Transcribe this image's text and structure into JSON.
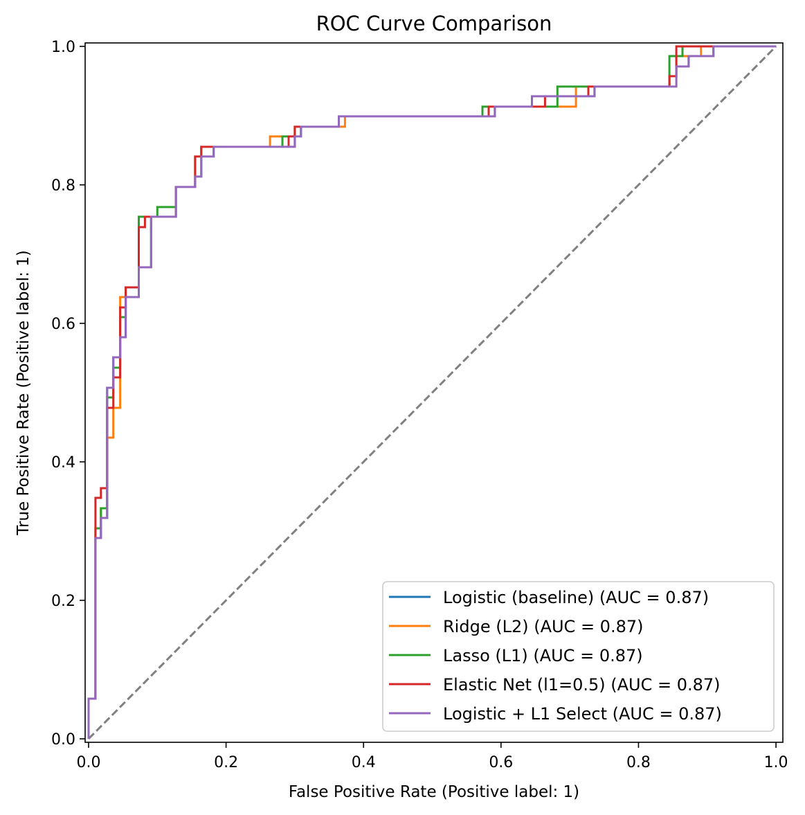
{
  "chart_data": {
    "type": "line",
    "title": "ROC Curve Comparison",
    "xlabel": "False Positive Rate (Positive label: 1)",
    "ylabel": "True Positive Rate (Positive label: 1)",
    "xlim": [
      -0.005,
      1.01
    ],
    "ylim": [
      -0.005,
      1.005
    ],
    "xticks": [
      "0.0",
      "0.2",
      "0.4",
      "0.6",
      "0.8",
      "1.0"
    ],
    "yticks": [
      "0.0",
      "0.2",
      "0.4",
      "0.6",
      "0.8",
      "1.0"
    ],
    "legend_position": "lower-right",
    "grid": false,
    "reference_line": {
      "x": [
        0,
        1
      ],
      "y": [
        0,
        1
      ],
      "color": "#808080",
      "style": "dashed"
    },
    "series": [
      {
        "name": "Logistic (baseline) (AUC = 0.87)",
        "color": "#1f77b4",
        "points": [
          [
            0,
            0
          ],
          [
            0,
            0.058
          ],
          [
            0.01,
            0.058
          ],
          [
            0.01,
            0.29
          ],
          [
            0.018,
            0.29
          ],
          [
            0.018,
            0.319
          ],
          [
            0.027,
            0.319
          ],
          [
            0.027,
            0.507
          ],
          [
            0.036,
            0.507
          ],
          [
            0.036,
            0.551
          ],
          [
            0.046,
            0.551
          ],
          [
            0.046,
            0.58
          ],
          [
            0.054,
            0.58
          ],
          [
            0.054,
            0.638
          ],
          [
            0.073,
            0.638
          ],
          [
            0.073,
            0.681
          ],
          [
            0.091,
            0.681
          ],
          [
            0.091,
            0.754
          ],
          [
            0.127,
            0.754
          ],
          [
            0.127,
            0.797
          ],
          [
            0.155,
            0.797
          ],
          [
            0.155,
            0.812
          ],
          [
            0.164,
            0.812
          ],
          [
            0.164,
            0.841
          ],
          [
            0.182,
            0.841
          ],
          [
            0.182,
            0.855
          ],
          [
            0.3,
            0.855
          ],
          [
            0.3,
            0.87
          ],
          [
            0.309,
            0.87
          ],
          [
            0.309,
            0.884
          ],
          [
            0.364,
            0.884
          ],
          [
            0.364,
            0.899
          ],
          [
            0.591,
            0.899
          ],
          [
            0.591,
            0.913
          ],
          [
            0.645,
            0.913
          ],
          [
            0.645,
            0.928
          ],
          [
            0.736,
            0.928
          ],
          [
            0.736,
            0.942
          ],
          [
            0.845,
            0.942
          ],
          [
            0.845,
            0.957
          ],
          [
            0.855,
            0.957
          ],
          [
            0.855,
            0.971
          ],
          [
            0.873,
            0.971
          ],
          [
            0.873,
            0.986
          ],
          [
            0.909,
            0.986
          ],
          [
            0.909,
            1.0
          ],
          [
            1.0,
            1.0
          ]
        ]
      },
      {
        "name": "Ridge (L2) (AUC = 0.87)",
        "color": "#ff7f0e",
        "points": [
          [
            0,
            0
          ],
          [
            0,
            0.058
          ],
          [
            0.01,
            0.058
          ],
          [
            0.01,
            0.304
          ],
          [
            0.018,
            0.304
          ],
          [
            0.018,
            0.333
          ],
          [
            0.027,
            0.333
          ],
          [
            0.027,
            0.435
          ],
          [
            0.036,
            0.435
          ],
          [
            0.036,
            0.478
          ],
          [
            0.046,
            0.478
          ],
          [
            0.046,
            0.638
          ],
          [
            0.054,
            0.638
          ],
          [
            0.054,
            0.652
          ],
          [
            0.073,
            0.652
          ],
          [
            0.073,
            0.754
          ],
          [
            0.091,
            0.754
          ],
          [
            0.127,
            0.754
          ],
          [
            0.127,
            0.797
          ],
          [
            0.155,
            0.797
          ],
          [
            0.155,
            0.841
          ],
          [
            0.164,
            0.841
          ],
          [
            0.164,
            0.855
          ],
          [
            0.264,
            0.855
          ],
          [
            0.264,
            0.87
          ],
          [
            0.3,
            0.87
          ],
          [
            0.3,
            0.884
          ],
          [
            0.373,
            0.884
          ],
          [
            0.373,
            0.899
          ],
          [
            0.582,
            0.899
          ],
          [
            0.582,
            0.913
          ],
          [
            0.709,
            0.913
          ],
          [
            0.709,
            0.942
          ],
          [
            0.845,
            0.942
          ],
          [
            0.845,
            0.957
          ],
          [
            0.855,
            0.957
          ],
          [
            0.855,
            0.986
          ],
          [
            0.891,
            0.986
          ],
          [
            0.891,
            1.0
          ],
          [
            1.0,
            1.0
          ]
        ]
      },
      {
        "name": "Lasso (L1) (AUC = 0.87)",
        "color": "#2ca02c",
        "points": [
          [
            0,
            0
          ],
          [
            0,
            0.058
          ],
          [
            0.01,
            0.058
          ],
          [
            0.01,
            0.304
          ],
          [
            0.018,
            0.304
          ],
          [
            0.018,
            0.333
          ],
          [
            0.027,
            0.333
          ],
          [
            0.027,
            0.493
          ],
          [
            0.036,
            0.493
          ],
          [
            0.036,
            0.536
          ],
          [
            0.046,
            0.536
          ],
          [
            0.046,
            0.609
          ],
          [
            0.054,
            0.609
          ],
          [
            0.054,
            0.652
          ],
          [
            0.073,
            0.652
          ],
          [
            0.073,
            0.754
          ],
          [
            0.1,
            0.754
          ],
          [
            0.1,
            0.768
          ],
          [
            0.127,
            0.768
          ],
          [
            0.127,
            0.797
          ],
          [
            0.155,
            0.797
          ],
          [
            0.155,
            0.841
          ],
          [
            0.164,
            0.841
          ],
          [
            0.164,
            0.855
          ],
          [
            0.282,
            0.855
          ],
          [
            0.282,
            0.87
          ],
          [
            0.3,
            0.87
          ],
          [
            0.3,
            0.884
          ],
          [
            0.364,
            0.884
          ],
          [
            0.364,
            0.899
          ],
          [
            0.573,
            0.899
          ],
          [
            0.573,
            0.913
          ],
          [
            0.682,
            0.913
          ],
          [
            0.682,
            0.942
          ],
          [
            0.845,
            0.942
          ],
          [
            0.845,
            0.986
          ],
          [
            0.864,
            0.986
          ],
          [
            0.864,
            1.0
          ],
          [
            1.0,
            1.0
          ]
        ]
      },
      {
        "name": "Elastic Net (l1=0.5) (AUC = 0.87)",
        "color": "#d62728",
        "points": [
          [
            0,
            0
          ],
          [
            0,
            0.058
          ],
          [
            0.01,
            0.058
          ],
          [
            0.01,
            0.348
          ],
          [
            0.018,
            0.348
          ],
          [
            0.018,
            0.362
          ],
          [
            0.027,
            0.362
          ],
          [
            0.027,
            0.478
          ],
          [
            0.036,
            0.478
          ],
          [
            0.036,
            0.522
          ],
          [
            0.046,
            0.522
          ],
          [
            0.046,
            0.623
          ],
          [
            0.054,
            0.623
          ],
          [
            0.054,
            0.652
          ],
          [
            0.073,
            0.652
          ],
          [
            0.073,
            0.739
          ],
          [
            0.082,
            0.739
          ],
          [
            0.082,
            0.754
          ],
          [
            0.127,
            0.754
          ],
          [
            0.127,
            0.797
          ],
          [
            0.155,
            0.797
          ],
          [
            0.155,
            0.841
          ],
          [
            0.164,
            0.841
          ],
          [
            0.164,
            0.855
          ],
          [
            0.291,
            0.855
          ],
          [
            0.291,
            0.87
          ],
          [
            0.3,
            0.87
          ],
          [
            0.3,
            0.884
          ],
          [
            0.364,
            0.884
          ],
          [
            0.364,
            0.899
          ],
          [
            0.582,
            0.899
          ],
          [
            0.582,
            0.913
          ],
          [
            0.664,
            0.913
          ],
          [
            0.664,
            0.928
          ],
          [
            0.727,
            0.928
          ],
          [
            0.727,
            0.942
          ],
          [
            0.845,
            0.942
          ],
          [
            0.845,
            0.957
          ],
          [
            0.855,
            0.957
          ],
          [
            0.855,
            1.0
          ],
          [
            1.0,
            1.0
          ]
        ]
      },
      {
        "name": "Logistic + L1 Select (AUC = 0.87)",
        "color": "#9467bd",
        "points": [
          [
            0,
            0
          ],
          [
            0,
            0.058
          ],
          [
            0.01,
            0.058
          ],
          [
            0.01,
            0.29
          ],
          [
            0.018,
            0.29
          ],
          [
            0.018,
            0.319
          ],
          [
            0.027,
            0.319
          ],
          [
            0.027,
            0.507
          ],
          [
            0.036,
            0.507
          ],
          [
            0.036,
            0.551
          ],
          [
            0.046,
            0.551
          ],
          [
            0.046,
            0.58
          ],
          [
            0.054,
            0.58
          ],
          [
            0.054,
            0.638
          ],
          [
            0.073,
            0.638
          ],
          [
            0.073,
            0.681
          ],
          [
            0.091,
            0.681
          ],
          [
            0.091,
            0.754
          ],
          [
            0.127,
            0.754
          ],
          [
            0.127,
            0.797
          ],
          [
            0.155,
            0.797
          ],
          [
            0.155,
            0.812
          ],
          [
            0.164,
            0.812
          ],
          [
            0.164,
            0.841
          ],
          [
            0.182,
            0.841
          ],
          [
            0.182,
            0.855
          ],
          [
            0.3,
            0.855
          ],
          [
            0.3,
            0.87
          ],
          [
            0.309,
            0.87
          ],
          [
            0.309,
            0.884
          ],
          [
            0.364,
            0.884
          ],
          [
            0.364,
            0.899
          ],
          [
            0.591,
            0.899
          ],
          [
            0.591,
            0.913
          ],
          [
            0.645,
            0.913
          ],
          [
            0.645,
            0.928
          ],
          [
            0.736,
            0.928
          ],
          [
            0.736,
            0.942
          ],
          [
            0.855,
            0.942
          ],
          [
            0.855,
            0.971
          ],
          [
            0.873,
            0.971
          ],
          [
            0.873,
            0.986
          ],
          [
            0.909,
            0.986
          ],
          [
            0.909,
            1.0
          ],
          [
            1.0,
            1.0
          ]
        ]
      }
    ]
  }
}
